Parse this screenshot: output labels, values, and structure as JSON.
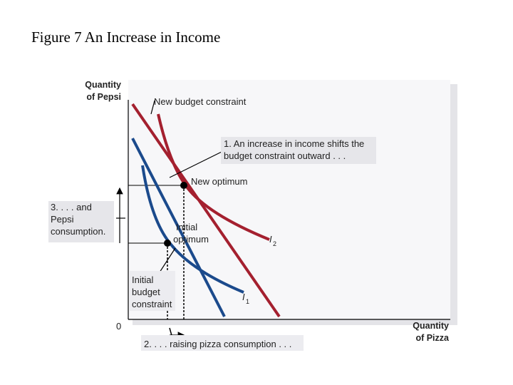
{
  "title": "Figure 7 An Increase in Income",
  "y_axis_label": [
    "Quantity",
    "of Pepsi"
  ],
  "x_axis_label": [
    "Quantity",
    "of Pizza"
  ],
  "origin": "0",
  "new_budget_constraint": "New budget constraint",
  "note_1": [
    "1. An increase in income shifts the",
    "budget constraint outward . . ."
  ],
  "new_optimum": "New optimum",
  "note_3": [
    "3. . . . and",
    "Pepsi",
    "consumption."
  ],
  "initial_optimum": [
    "Initial",
    "optimum"
  ],
  "initial_budget_constraint": [
    "Initial",
    "budget",
    "constraint"
  ],
  "note_2": "2. . . . raising pizza consumption . . .",
  "curve_i2": {
    "letter": "I",
    "subscript": "2"
  },
  "curve_i1": {
    "letter": "I",
    "subscript": "1"
  }
}
